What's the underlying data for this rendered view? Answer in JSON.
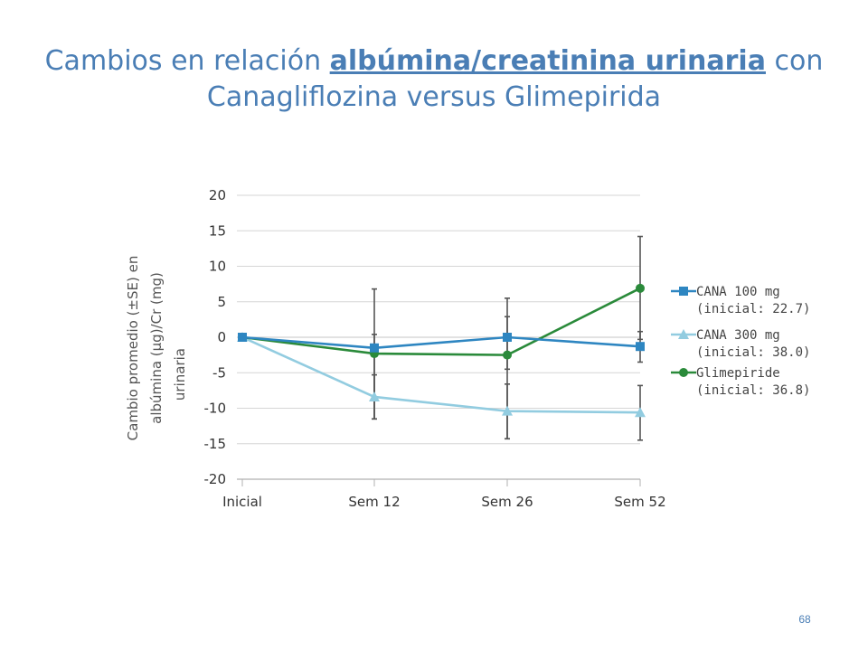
{
  "slide": {
    "title_part1": "Cambios en relación ",
    "title_highlight": "albúmina/creatinina urinaria",
    "title_part2": " con Canagliflozina versus Glimepirida",
    "page_number": "68"
  },
  "chart_data": {
    "type": "line",
    "title": "",
    "xlabel": "",
    "ylabel_lines": [
      "Cambio promedio (±SE) en",
      "albúmina (µg)/Cr (mg)",
      "urinaria"
    ],
    "categories": [
      "Inicial",
      "Sem 12",
      "Sem 26",
      "Sem 52"
    ],
    "ylim": [
      -20,
      20
    ],
    "yticks": [
      20,
      15,
      10,
      5,
      0,
      -5,
      -10,
      -15,
      -20
    ],
    "grid": "horizontal",
    "legend_position": "right",
    "series": [
      {
        "name_line1": "CANA 100 mg",
        "name_line2": "(inicial: 22.7)",
        "color": "#2e86c1",
        "marker": "square",
        "values": [
          0,
          -1.5,
          0,
          -1.3
        ],
        "err_low": [
          null,
          -11.5,
          -4.5,
          -3.5
        ],
        "err_high": [
          null,
          0.4,
          5.5,
          0.8
        ]
      },
      {
        "name_line1": "CANA 300 mg",
        "name_line2": "(inicial: 38.0)",
        "color": "#92cce0",
        "marker": "triangle",
        "values": [
          0,
          -8.4,
          -10.4,
          -10.6
        ],
        "err_low": [
          null,
          -11.5,
          -14.3,
          -14.5
        ],
        "err_high": [
          null,
          -5.3,
          -6.6,
          -6.8
        ]
      },
      {
        "name_line1": "Glimepiride",
        "name_line2": "(inicial: 36.8)",
        "color": "#2a8a3a",
        "marker": "circle",
        "values": [
          0,
          -2.3,
          -2.5,
          6.9
        ],
        "err_low": [
          null,
          -11.5,
          -14.3,
          -0.3
        ],
        "err_high": [
          null,
          6.8,
          2.9,
          14.2
        ]
      }
    ]
  }
}
